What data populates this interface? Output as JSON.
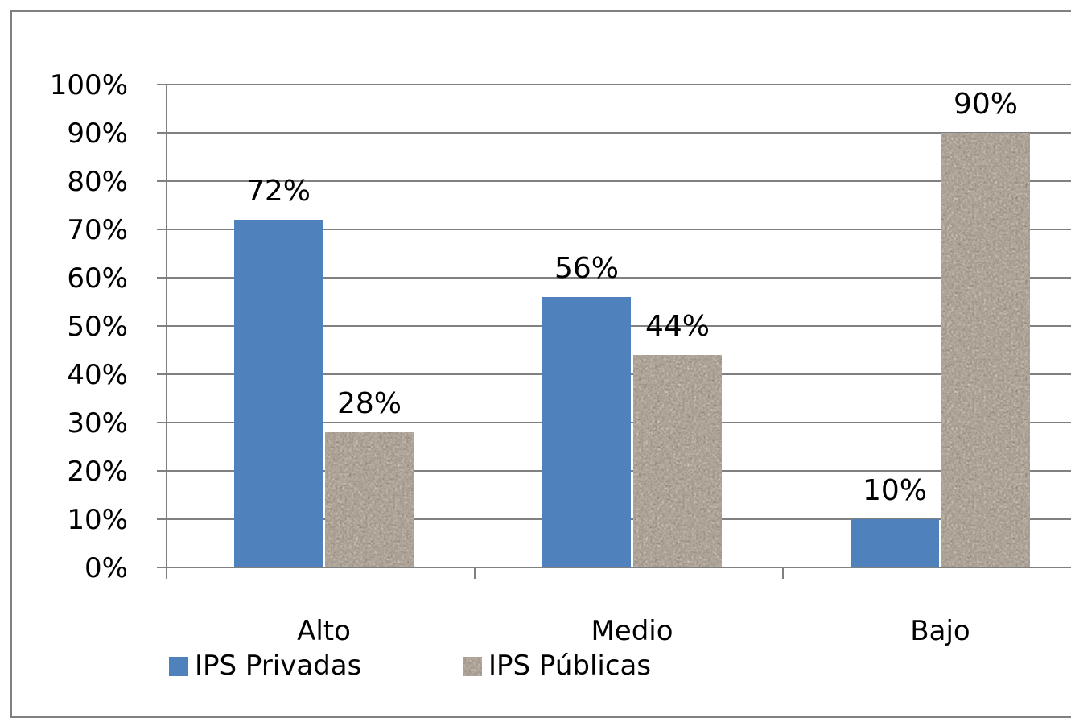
{
  "chart_data": {
    "type": "bar",
    "categories": [
      "Alto",
      "Medio",
      "Bajo"
    ],
    "series": [
      {
        "name": "IPS Privadas",
        "values": [
          72,
          56,
          10
        ],
        "labels": [
          "72%",
          "56%",
          "10%"
        ],
        "color": "#4f81bd"
      },
      {
        "name": "IPS Públicas",
        "values": [
          28,
          44,
          90
        ],
        "labels": [
          "28%",
          "44%",
          "90%"
        ],
        "color": "#9e9488",
        "pattern": "granite"
      }
    ],
    "y_ticks": [
      "0%",
      "10%",
      "20%",
      "30%",
      "40%",
      "50%",
      "60%",
      "70%",
      "80%",
      "90%",
      "100%"
    ],
    "ylim": [
      0,
      100
    ],
    "grid": true,
    "legend_position": "bottom-left"
  }
}
